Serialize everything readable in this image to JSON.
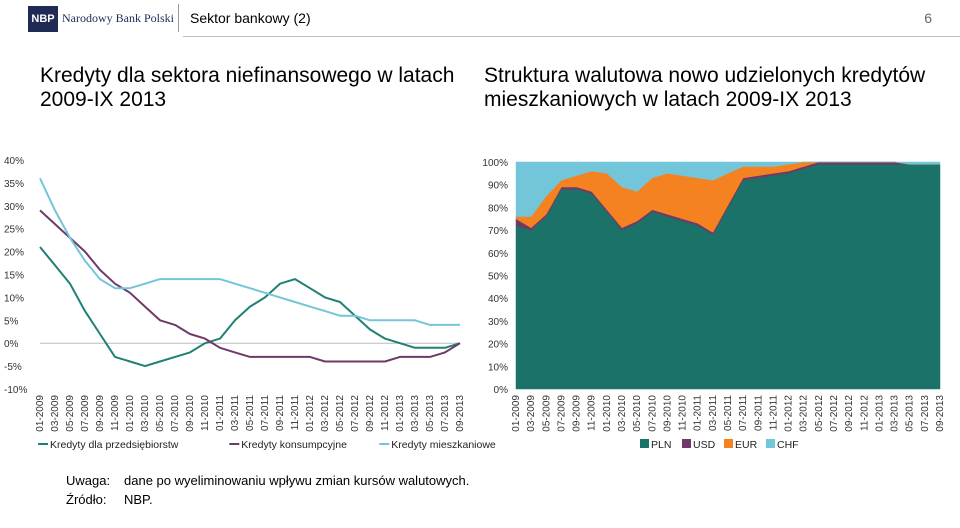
{
  "header": {
    "logo_code": "NBP",
    "logo_text": "Narodowy Bank Polski",
    "section": "Sektor bankowy (2)",
    "page": "6"
  },
  "titles": {
    "left": "Kredyty dla sektora niefinansowego w latach 2009-IX 2013",
    "right": "Struktura walutowa nowo udzielonych kredytów mieszkaniowych w latach 2009-IX 2013"
  },
  "notes": {
    "uwaga_label": "Uwaga:",
    "uwaga_text": "dane po wyeliminowaniu wpływu zmian kursów walutowych.",
    "zrodlo_label": "Źródło:",
    "zrodlo_text": "NBP."
  },
  "colors": {
    "enterprises": "#1f8074",
    "consumer": "#6f3a68",
    "mortgage": "#73c6d9",
    "PLN": "#1a7268",
    "USD": "#6f3a68",
    "EUR": "#f58220",
    "CHF": "#73c6d9"
  },
  "chart_data": [
    {
      "type": "line",
      "title": "",
      "ylim": [
        -10,
        40
      ],
      "yticks": [
        "40%",
        "35%",
        "30%",
        "25%",
        "20%",
        "15%",
        "10%",
        "5%",
        "0%",
        "-5%",
        "-10%"
      ],
      "ytick_values": [
        40,
        35,
        30,
        25,
        20,
        15,
        10,
        5,
        0,
        -5,
        -10
      ],
      "x_labels": [
        "01-2009",
        "03-2009",
        "05-2009",
        "07-2009",
        "09-2009",
        "11-2009",
        "01-2010",
        "03-2010",
        "05-2010",
        "07-2010",
        "09-2010",
        "11-2010",
        "01-2011",
        "03-2011",
        "05-2011",
        "07-2011",
        "09-2011",
        "11-2011",
        "01-2012",
        "03-2012",
        "05-2012",
        "07-2012",
        "09-2012",
        "11-2012",
        "01-2013",
        "03-2013",
        "05-2013",
        "07-2013",
        "09-2013"
      ],
      "legend_position": "bottom",
      "series": [
        {
          "name": "Kredyty dla przedsiębiorstw",
          "values": [
            21,
            17,
            13,
            7,
            2,
            -3,
            -4,
            -5,
            -4,
            -3,
            -2,
            0,
            1,
            5,
            8,
            10,
            13,
            14,
            12,
            10,
            9,
            6,
            3,
            1,
            0,
            -1,
            -1,
            -1,
            0
          ]
        },
        {
          "name": "Kredyty konsumpcyjne",
          "values": [
            29,
            26,
            23,
            20,
            16,
            13,
            11,
            8,
            5,
            4,
            2,
            1,
            -1,
            -2,
            -3,
            -3,
            -3,
            -3,
            -3,
            -4,
            -4,
            -4,
            -4,
            -4,
            -3,
            -3,
            -3,
            -2,
            0
          ]
        },
        {
          "name": "Kredyty mieszkaniowe",
          "values": [
            36,
            29,
            23,
            18,
            14,
            12,
            12,
            13,
            14,
            14,
            14,
            14,
            14,
            13,
            12,
            11,
            10,
            9,
            8,
            7,
            6,
            6,
            5,
            5,
            5,
            5,
            4,
            4,
            4
          ]
        }
      ]
    },
    {
      "type": "area",
      "stacked": true,
      "title": "",
      "ylim": [
        0,
        100
      ],
      "yticks": [
        "100%",
        "90%",
        "80%",
        "70%",
        "60%",
        "50%",
        "40%",
        "30%",
        "20%",
        "10%",
        "0%"
      ],
      "ytick_values": [
        100,
        90,
        80,
        70,
        60,
        50,
        40,
        30,
        20,
        10,
        0
      ],
      "x_labels": [
        "01-2009",
        "03-2009",
        "05-2009",
        "07-2009",
        "09-2009",
        "11-2009",
        "01-2010",
        "03-2010",
        "05-2010",
        "07-2010",
        "09-2010",
        "11-2010",
        "01-2011",
        "03-2011",
        "05-2011",
        "07-2011",
        "09-2011",
        "11-2011",
        "01-2012",
        "03-2012",
        "05-2012",
        "07-2012",
        "09-2012",
        "11-2012",
        "01-2013",
        "03-2013",
        "05-2013",
        "07-2013",
        "09-2013"
      ],
      "legend_position": "bottom",
      "series": [
        {
          "name": "PLN",
          "values": [
            72,
            70,
            76,
            88,
            88,
            86,
            78,
            70,
            73,
            78,
            76,
            74,
            72,
            68,
            80,
            92,
            93,
            94,
            95,
            97,
            99,
            99,
            99,
            99,
            99,
            99,
            99,
            99,
            99
          ]
        },
        {
          "name": "USD",
          "values": [
            3,
            1,
            1,
            1,
            1,
            1,
            1,
            1,
            1,
            1,
            1,
            1,
            1,
            1,
            1,
            1,
            1,
            1,
            1,
            1,
            1,
            1,
            1,
            1,
            1,
            1,
            0,
            0,
            0
          ]
        },
        {
          "name": "EUR",
          "values": [
            1,
            5,
            8,
            3,
            5,
            9,
            16,
            18,
            13,
            14,
            18,
            19,
            20,
            23,
            14,
            5,
            4,
            3,
            3,
            2,
            0,
            0,
            0,
            0,
            0,
            0,
            0,
            0,
            0
          ]
        },
        {
          "name": "CHF",
          "values": [
            24,
            24,
            15,
            8,
            6,
            4,
            5,
            11,
            13,
            7,
            5,
            6,
            7,
            8,
            5,
            2,
            2,
            2,
            1,
            0,
            0,
            0,
            0,
            0,
            0,
            0,
            1,
            1,
            1
          ]
        }
      ]
    }
  ]
}
